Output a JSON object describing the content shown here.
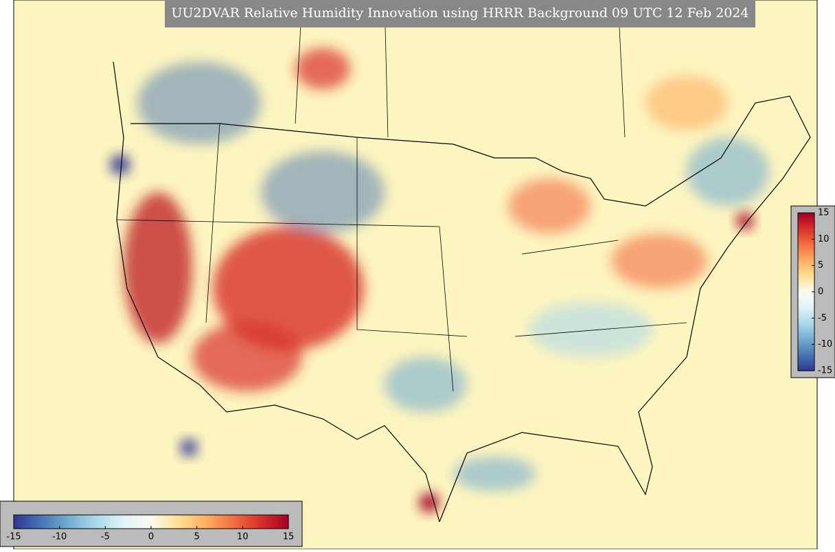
{
  "title": "UU2DVAR Relative Humidity Innovation using HRRR Background 09 UTC 12 Feb 2024",
  "colorbars": [
    {
      "orientation": "horizontal",
      "lim": [
        -15,
        15
      ],
      "ticks": [
        -15,
        -10,
        -5,
        0,
        5,
        10,
        15
      ]
    },
    {
      "orientation": "vertical",
      "lim": [
        -15,
        15
      ],
      "ticks": [
        -15,
        -10,
        -5,
        0,
        5,
        10,
        15
      ]
    }
  ]
}
